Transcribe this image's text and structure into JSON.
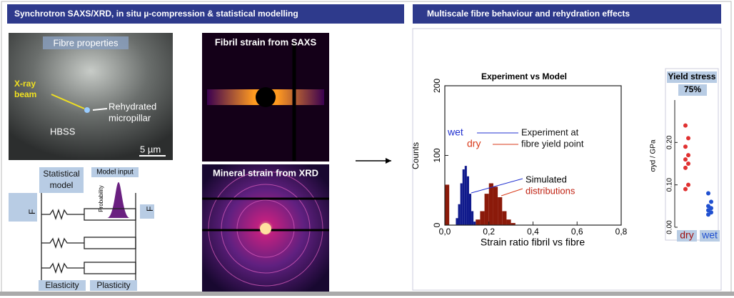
{
  "header": {
    "left": "Synchrotron SAXS/XRD, in situ µ-compression & statistical modelling",
    "right": "Multiscale fibre behaviour and rehydration effects"
  },
  "fibre": {
    "title": "Fibre properties",
    "beam": [
      "X-ray",
      "beam"
    ],
    "pillar": [
      "Rehydrated",
      "micropillar"
    ],
    "medium": "HBSS",
    "scale": "5 µm"
  },
  "saxs": {
    "title": "Fibril strain from SAXS"
  },
  "xrd": {
    "title": "Mineral strain from XRD"
  },
  "model": {
    "title": [
      "Statistical",
      "model"
    ],
    "input": "Model input",
    "probability": "Probability",
    "force": "F",
    "elasticity": "Elasticity",
    "plasticity": "Plasticity"
  },
  "histogram": {
    "title": "Experiment vs Model",
    "xlabel": "Strain ratio fibril vs fibre",
    "ylabel": "Counts",
    "xlim": [
      0,
      0.8
    ],
    "xticks": [
      {
        "value": 0,
        "label": "0,0"
      },
      {
        "value": 0.2,
        "label": "0,2"
      },
      {
        "value": 0.4,
        "label": "0,4"
      },
      {
        "value": 0.6,
        "label": "0,6"
      },
      {
        "value": 0.8,
        "label": "0,8"
      }
    ],
    "ylim": [
      0,
      200
    ],
    "yticks": [
      0,
      100,
      200
    ],
    "experiment": [
      "Experiment at",
      "fibre yield point"
    ],
    "simulated": [
      "Simulated",
      "distributions"
    ],
    "series": [
      {
        "name": "dry",
        "color": "#8b1a0a",
        "text_color": "#d93a1a",
        "bins": [
          0,
          0.02,
          0.04,
          0.06,
          0.08,
          0.1,
          0.12,
          0.14,
          0.16,
          0.18,
          0.2,
          0.22,
          0.24,
          0.26,
          0.28,
          0.3,
          0.32
        ],
        "counts": [
          58,
          0,
          0,
          0,
          0,
          0,
          0,
          8,
          20,
          45,
          60,
          55,
          40,
          20,
          8,
          3
        ]
      },
      {
        "name": "wet",
        "color": "#101a8c",
        "text_color": "#2030d0",
        "bins": [
          0.05,
          0.06,
          0.07,
          0.08,
          0.09,
          0.1,
          0.11,
          0.12,
          0.13,
          0.14
        ],
        "counts": [
          10,
          30,
          60,
          80,
          85,
          70,
          45,
          20,
          5
        ]
      }
    ]
  },
  "yield": {
    "title": "Yield stress",
    "percent": "75%",
    "ylabel": "σyd / GPa",
    "ylim": [
      0,
      0.3
    ],
    "yticks": [
      {
        "value": 0,
        "label": "0.00"
      },
      {
        "value": 0.1,
        "label": "0.10"
      },
      {
        "value": 0.2,
        "label": "0.20"
      }
    ],
    "categories": [
      "dry",
      "wet"
    ],
    "series": [
      {
        "name": "dry",
        "color": "#e03030",
        "values": [
          0.24,
          0.21,
          0.19,
          0.17,
          0.16,
          0.15,
          0.14,
          0.1,
          0.09
        ]
      },
      {
        "name": "wet",
        "color": "#2050d0",
        "values": [
          0.08,
          0.06,
          0.05,
          0.045,
          0.04,
          0.035,
          0.03
        ]
      }
    ]
  }
}
